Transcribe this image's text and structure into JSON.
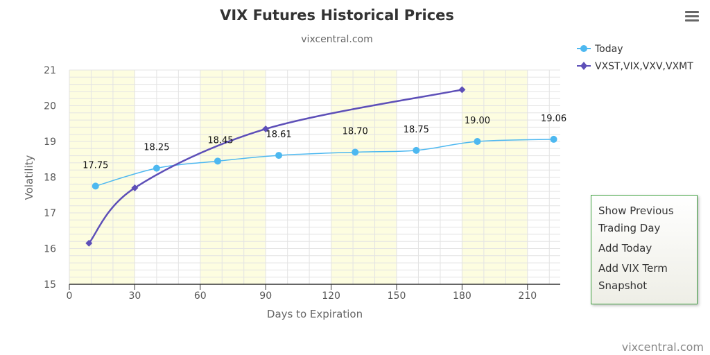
{
  "chart_data": {
    "type": "line",
    "title": "VIX Futures Historical Prices",
    "subtitle": "vixcentral.com",
    "xlabel": "Days to Expiration",
    "ylabel": "Volatility",
    "xlim": [
      0,
      225
    ],
    "ylim": [
      15,
      21
    ],
    "xticks": [
      0,
      30,
      60,
      90,
      120,
      150,
      180,
      210
    ],
    "yticks": [
      15,
      16,
      17,
      18,
      19,
      20,
      21
    ],
    "shaded_bands": [
      [
        0,
        30
      ],
      [
        60,
        90
      ],
      [
        120,
        150
      ],
      [
        180,
        210
      ]
    ],
    "grid": true,
    "legend_position": "top-right",
    "series": [
      {
        "name": "Today",
        "color": "#4db8f0",
        "marker": "circle",
        "x": [
          12,
          40,
          68,
          96,
          131,
          159,
          187,
          222
        ],
        "y": [
          17.75,
          18.25,
          18.45,
          18.61,
          18.7,
          18.75,
          19.0,
          19.06
        ],
        "labels": [
          "17.75",
          "18.25",
          "18.45",
          "18.61",
          "18.70",
          "18.75",
          "19.00",
          "19.06"
        ]
      },
      {
        "name": "VXST,VIX,VXV,VXMT",
        "color": "#5d4fb8",
        "marker": "diamond",
        "x": [
          9,
          30,
          90,
          180
        ],
        "y": [
          16.15,
          17.7,
          19.35,
          20.45
        ]
      }
    ]
  },
  "menu": {
    "icon": "hamburger-icon",
    "items": [
      "Show Previous Trading Day",
      "Add Today",
      "Add VIX Term Snapshot"
    ]
  },
  "credits": "vixcentral.com"
}
